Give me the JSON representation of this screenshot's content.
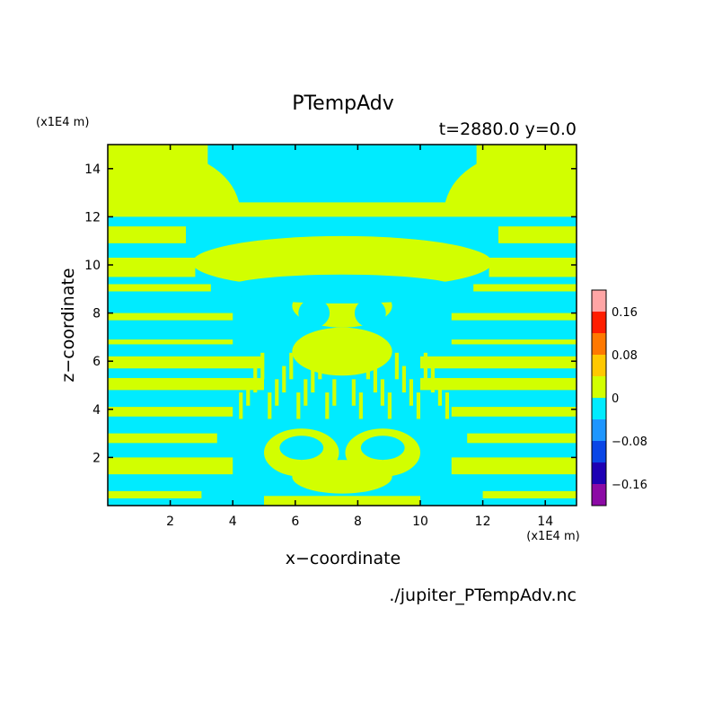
{
  "chart_data": {
    "type": "heatmap",
    "title": "PTempAdv",
    "subtitle": "t=2880.0 y=0.0",
    "xlabel": "x−coordinate",
    "ylabel": "z−coordinate",
    "x_unit": "(x1E4 m)",
    "y_unit": "(x1E4 m)",
    "xlim": [
      0,
      15
    ],
    "ylim": [
      0,
      15
    ],
    "x_ticks": [
      2,
      4,
      6,
      8,
      10,
      12,
      14
    ],
    "y_ticks": [
      2,
      4,
      6,
      8,
      10,
      12,
      14
    ],
    "x_tick_labels": [
      "2",
      "4",
      "6",
      "8",
      "10",
      "12",
      "14"
    ],
    "y_tick_labels": [
      "2",
      "4",
      "6",
      "8",
      "10",
      "12",
      "14"
    ],
    "source_file": "./jupiter_PTempAdv.nc",
    "colorbar": {
      "levels": [
        -0.2,
        -0.16,
        -0.12,
        -0.08,
        -0.04,
        0,
        0.04,
        0.08,
        0.12,
        0.16,
        0.2
      ],
      "colors": [
        "#8c0aa5",
        "#1e00b4",
        "#0a46e6",
        "#1e96ff",
        "#00ebff",
        "#d2ff00",
        "#ffc800",
        "#ff7800",
        "#ff1e00",
        "#ffa5a5"
      ],
      "tick_values": [
        -0.16,
        -0.08,
        0,
        0.08,
        0.16
      ],
      "tick_labels": [
        "−0.16",
        "−0.08",
        "0",
        "0.08",
        "0.16"
      ]
    },
    "field_summary": "values lie in two bands: slightly positive (yellow-green, 0 to 0.04) and slightly negative (cyan, -0.04 to 0)",
    "grid": false,
    "legend": "colorbar right"
  }
}
